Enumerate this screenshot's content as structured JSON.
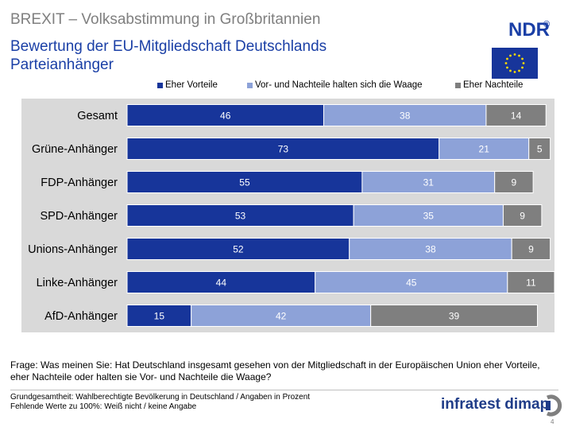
{
  "header": {
    "title": "BREXIT – Volksabstimmung in Großbritannien",
    "subtitle_line1": "Bewertung der EU-Mitgliedschaft Deutschlands",
    "subtitle_line2": "Parteianhänger",
    "logo_text": "NDR",
    "logo_mark": "®"
  },
  "chart_data": {
    "type": "bar",
    "orientation": "horizontal",
    "stacked": true,
    "percent_total": 100,
    "categories": [
      "Gesamt",
      "Grüne-Anhänger",
      "FDP-Anhänger",
      "SPD-Anhänger",
      "Unions-Anhänger",
      "Linke-Anhänger",
      "AfD-Anhänger"
    ],
    "series": [
      {
        "name": "Eher Vorteile",
        "color": "#17359a",
        "values": [
          46,
          73,
          55,
          53,
          52,
          44,
          15
        ]
      },
      {
        "name": "Vor- und Nachteile halten sich die Waage",
        "color": "#8da2d8",
        "values": [
          38,
          21,
          31,
          35,
          38,
          45,
          42
        ]
      },
      {
        "name": "Eher Nachteile",
        "color": "#7f7f7f",
        "values": [
          14,
          5,
          9,
          9,
          9,
          11,
          39
        ]
      }
    ],
    "legend_position": "top",
    "label_band_color": "#d9d9d9"
  },
  "footer": {
    "question": "Frage: Was meinen Sie: Hat Deutschland insgesamt gesehen von der Mitgliedschaft in der Europäischen Union eher Vorteile, eher Nachteile oder halten sie Vor- und Nachteile die Waage?",
    "basis1": "Grundgesamtheit:  Wahlberechtigte Bevölkerung  in Deutschland / Angaben  in Prozent",
    "basis2": "Fehlende  Werte zu 100%: Weiß nicht / keine Angabe",
    "brand": "infratest dimap",
    "page": "4"
  }
}
